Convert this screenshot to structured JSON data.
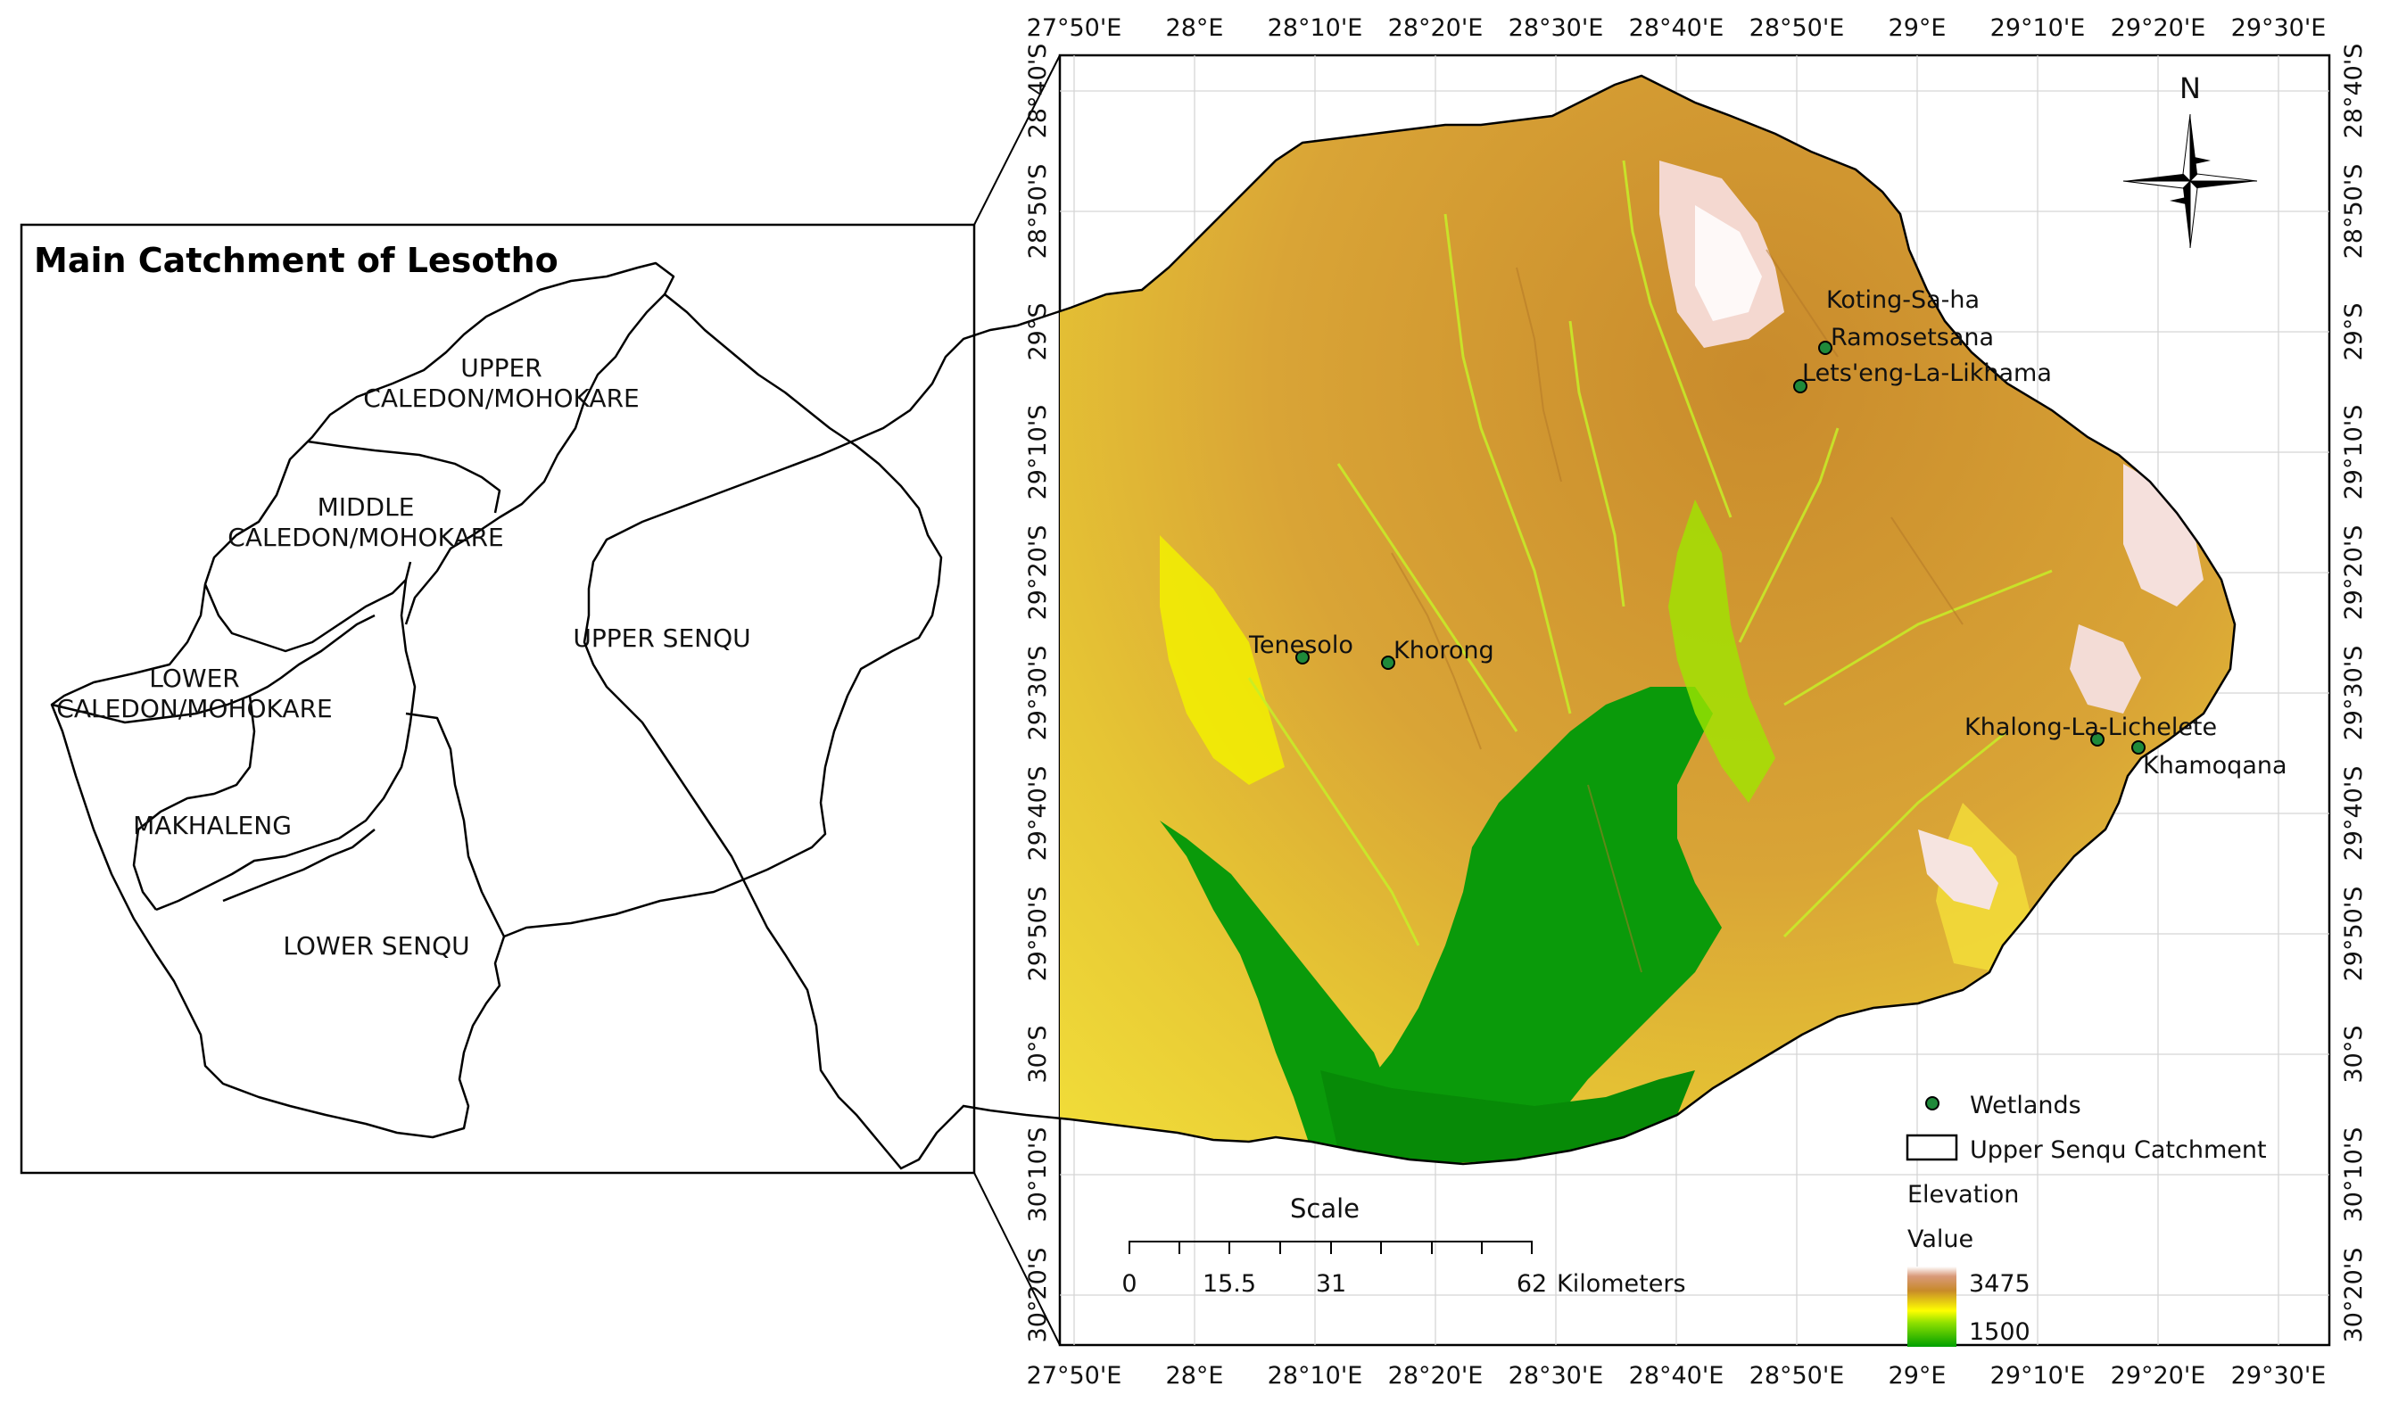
{
  "inset": {
    "title": "Main Catchment of Lesotho",
    "regions": [
      {
        "lines": [
          "UPPER",
          "CALEDON/MOHOKARE"
        ]
      },
      {
        "lines": [
          "MIDDLE",
          "CALEDON/MOHOKARE"
        ]
      },
      {
        "lines": [
          "UPPER SENQU"
        ]
      },
      {
        "lines": [
          "LOWER",
          "CALEDON/MOHOKARE"
        ]
      },
      {
        "lines": [
          "MAKHALENG"
        ]
      },
      {
        "lines": [
          "LOWER SENQU"
        ]
      }
    ]
  },
  "map": {
    "top_lon_labels": [
      "27°50'E",
      "28°E",
      "28°10'E",
      "28°20'E",
      "28°30'E",
      "28°40'E",
      "28°50'E",
      "29°E",
      "29°10'E",
      "29°20'E",
      "29°30'E"
    ],
    "bottom_lon_labels": [
      "27°50'E",
      "28°E",
      "28°10'E",
      "28°20'E",
      "28°30'E",
      "28°40'E",
      "28°50'E",
      "29°E",
      "29°10'E",
      "29°20'E",
      "29°30'E"
    ],
    "left_lat_labels": [
      "28°40'S",
      "28°50'S",
      "29°S",
      "29°10'S",
      "29°20'S",
      "29°30'S",
      "29°40'S",
      "29°50'S",
      "30°S",
      "30°10'S",
      "30°20'S"
    ],
    "right_lat_labels": [
      "28°40'S",
      "28°50'S",
      "29°S",
      "29°10'S",
      "29°20'S",
      "29°30'S",
      "29°40'S",
      "29°50'S",
      "30°S",
      "30°10'S",
      "30°20'S"
    ],
    "north_label": "N",
    "colors": {
      "high": "#ffffff",
      "upper": "#c88a2a",
      "mid": "#ffff00",
      "low": "#00a000"
    },
    "wetlands": [
      {
        "name": "Koting-Sa-ha"
      },
      {
        "name": "Ramosetsana"
      },
      {
        "name": "Lets'eng-La-Likhama"
      },
      {
        "name": "Tenesolo"
      },
      {
        "name": "Khorong"
      },
      {
        "name": "Khalong-La-Lichelete"
      },
      {
        "name": "Khamoqana"
      }
    ]
  },
  "scale": {
    "title": "Scale",
    "ticks": [
      "0",
      "15.5",
      "31",
      "62"
    ],
    "unit": "Kilometers"
  },
  "legend": {
    "wetlands": "Wetlands",
    "catchment": "Upper Senqu Catchment",
    "elevation_title": "Elevation",
    "value_title": "Value",
    "max": "3475",
    "min": "1500"
  }
}
